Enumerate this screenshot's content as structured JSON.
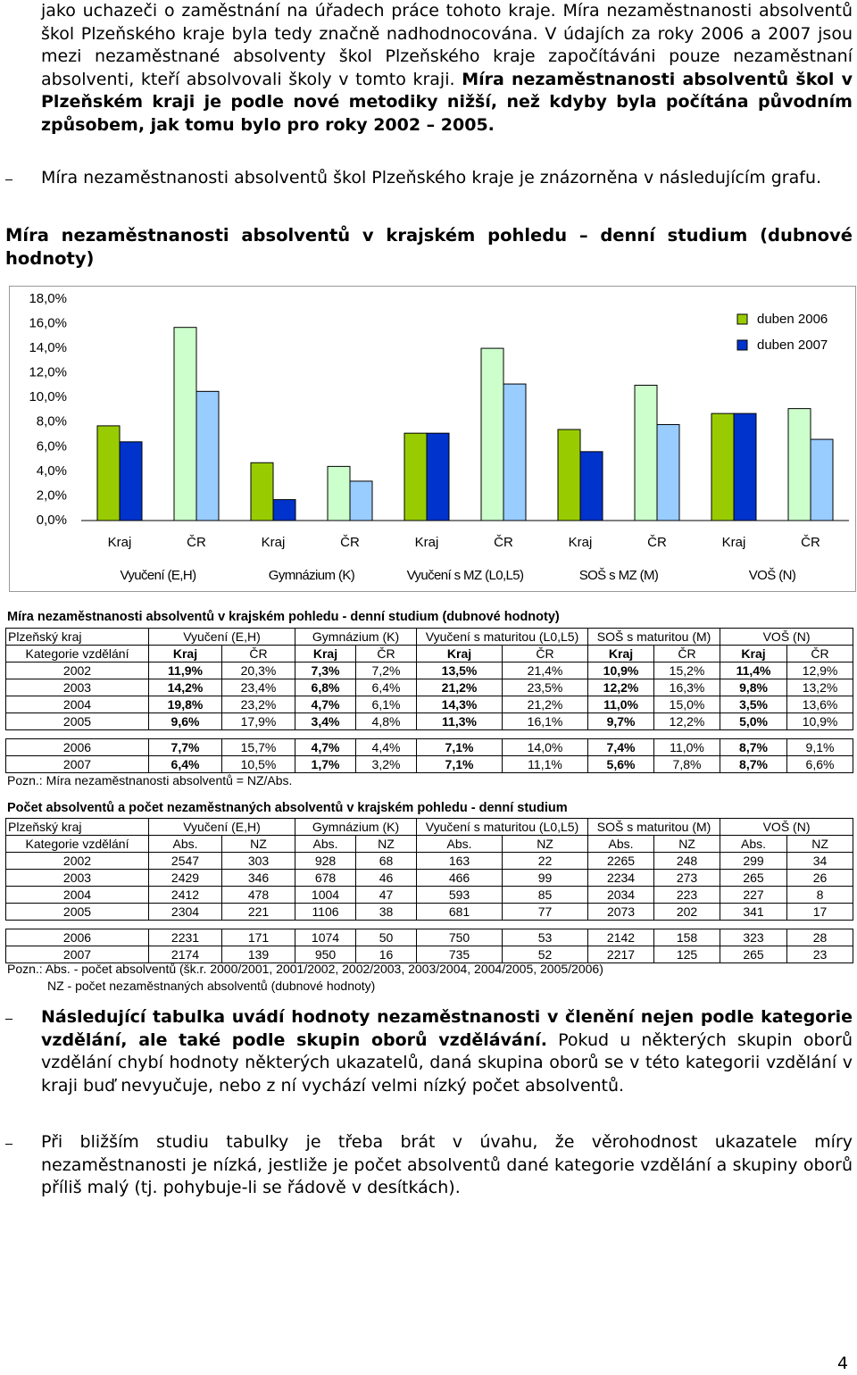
{
  "intro": {
    "text": "jako uchazeči o zaměstnání na úřadech práce tohoto kraje. Míra nezaměstnanosti absolventů škol Plzeňského kraje byla tedy značně nadhodnocována. V údajích za roky 2006 a 2007 jsou mezi nezaměstnané absolventy škol Plzeňského kraje započítáváni pouze nezaměstnaní absolventi, kteří absolvovali školy v tomto kraji.",
    "bold": "Míra nezaměstnanosti absolventů škol v Plzeňském kraji je podle nové metodiky nižší, než kdyby byla počítána původním způsobem, jak tomu bylo pro roky 2002 – 2005."
  },
  "bullets_top": [
    "Míra nezaměstnanosti absolventů škol Plzeňského kraje je znázorněna v následujícím grafu."
  ],
  "chart_heading": "Míra nezaměstnanosti absolventů v krajském pohledu – denní studium (dubnové hodnoty)",
  "chart_data": {
    "type": "bar",
    "categories": [
      "Kraj",
      "ČR",
      "Kraj",
      "ČR",
      "Kraj",
      "ČR",
      "Kraj",
      "ČR",
      "Kraj",
      "ČR"
    ],
    "groups": [
      "Vyučení (E,H)",
      "Gymnázium (K)",
      "Vyučení s MZ (L0,L5)",
      "SOŠ s MZ (M)",
      "VOŠ (N)"
    ],
    "ylim": [
      0,
      18
    ],
    "yticks": [
      {
        "value": 0,
        "label": "0,0%"
      },
      {
        "value": 2,
        "label": "2,0%"
      },
      {
        "value": 4,
        "label": "4,0%"
      },
      {
        "value": 6,
        "label": "6,0%"
      },
      {
        "value": 8,
        "label": "8,0%"
      },
      {
        "value": 10,
        "label": "10,0%"
      },
      {
        "value": 12,
        "label": "12,0%"
      },
      {
        "value": 14,
        "label": "14,0%"
      },
      {
        "value": 16,
        "label": "16,0%"
      },
      {
        "value": 18,
        "label": "18,0%"
      }
    ],
    "legend": "upper right",
    "series": [
      {
        "name": "duben 2006",
        "colors": [
          "#99cc00",
          "#ccffcc",
          "#99cc00",
          "#ccffcc",
          "#99cc00",
          "#ccffcc",
          "#99cc00",
          "#ccffcc",
          "#99cc00",
          "#ccffcc"
        ],
        "values": [
          7.7,
          15.7,
          4.7,
          4.4,
          7.1,
          14.0,
          7.4,
          11.0,
          8.7,
          9.1
        ]
      },
      {
        "name": "duben 2007",
        "colors": [
          "#0033cc",
          "#99ccff",
          "#0033cc",
          "#99ccff",
          "#0033cc",
          "#99ccff",
          "#0033cc",
          "#99ccff",
          "#0033cc",
          "#99ccff"
        ],
        "values": [
          6.4,
          10.5,
          1.7,
          3.2,
          7.1,
          11.1,
          5.6,
          7.8,
          8.7,
          6.6
        ]
      }
    ]
  },
  "table_rates": {
    "title": "Míra nezaměstnanosti absolventů v krajském pohledu - denní studium (dubnové hodnoty)",
    "header_groups": [
      "Plzeňský kraj",
      "Vyučení (E,H)",
      "Gymnázium (K)",
      "Vyučení s maturitou (L0,L5)",
      "SOŠ s maturitou (M)",
      "VOŠ (N)"
    ],
    "header_sub": [
      "Kategorie vzdělání",
      "Kraj",
      "ČR",
      "Kraj",
      "ČR",
      "Kraj",
      "ČR",
      "Kraj",
      "ČR",
      "Kraj",
      "ČR"
    ],
    "rows": [
      [
        "2002",
        "11,9%",
        "20,3%",
        "7,3%",
        "7,2%",
        "13,5%",
        "21,4%",
        "10,9%",
        "15,2%",
        "11,4%",
        "12,9%"
      ],
      [
        "2003",
        "14,2%",
        "23,4%",
        "6,8%",
        "6,4%",
        "21,2%",
        "23,5%",
        "12,2%",
        "16,3%",
        "9,8%",
        "13,2%"
      ],
      [
        "2004",
        "19,8%",
        "23,2%",
        "4,7%",
        "6,1%",
        "14,3%",
        "21,2%",
        "11,0%",
        "15,0%",
        "3,5%",
        "13,6%"
      ],
      [
        "2005",
        "9,6%",
        "17,9%",
        "3,4%",
        "4,8%",
        "11,3%",
        "16,1%",
        "9,7%",
        "12,2%",
        "5,0%",
        "10,9%"
      ]
    ],
    "rows_new": [
      [
        "2006",
        "7,7%",
        "15,7%",
        "4,7%",
        "4,4%",
        "7,1%",
        "14,0%",
        "7,4%",
        "11,0%",
        "8,7%",
        "9,1%"
      ],
      [
        "2007",
        "6,4%",
        "10,5%",
        "1,7%",
        "3,2%",
        "7,1%",
        "11,1%",
        "5,6%",
        "7,8%",
        "8,7%",
        "6,6%"
      ]
    ],
    "notes": [
      "Pozn.: Míra nezaměstnanosti absolventů = NZ/Abs."
    ]
  },
  "table_counts": {
    "title": "Počet absolventů a počet nezaměstnaných absolventů v krajském pohledu - denní studium",
    "header_groups": [
      "Plzeňský kraj",
      "Vyučení (E,H)",
      "Gymnázium (K)",
      "Vyučení s maturitou (L0,L5)",
      "SOŠ s maturitou (M)",
      "VOŠ (N)"
    ],
    "header_sub": [
      "Kategorie vzdělání",
      "Abs.",
      "NZ",
      "Abs.",
      "NZ",
      "Abs.",
      "NZ",
      "Abs.",
      "NZ",
      "Abs.",
      "NZ"
    ],
    "rows": [
      [
        "2002",
        "2547",
        "303",
        "928",
        "68",
        "163",
        "22",
        "2265",
        "248",
        "299",
        "34"
      ],
      [
        "2003",
        "2429",
        "346",
        "678",
        "46",
        "466",
        "99",
        "2234",
        "273",
        "265",
        "26"
      ],
      [
        "2004",
        "2412",
        "478",
        "1004",
        "47",
        "593",
        "85",
        "2034",
        "223",
        "227",
        "8"
      ],
      [
        "2005",
        "2304",
        "221",
        "1106",
        "38",
        "681",
        "77",
        "2073",
        "202",
        "341",
        "17"
      ]
    ],
    "rows_new": [
      [
        "2006",
        "2231",
        "171",
        "1074",
        "50",
        "750",
        "53",
        "2142",
        "158",
        "323",
        "28"
      ],
      [
        "2007",
        "2174",
        "139",
        "950",
        "16",
        "735",
        "52",
        "2217",
        "125",
        "265",
        "23"
      ]
    ],
    "notes": [
      "Pozn.: Abs. - počet absolventů (šk.r. 2000/2001, 2001/2002, 2002/2003, 2003/2004, 2004/2005, 2005/2006)",
      "NZ - počet nezaměstnaných absolventů (dubnové hodnoty)"
    ]
  },
  "bullets_bottom": [
    {
      "bold": "Následující tabulka uvádí hodnoty nezaměstnanosti v členění nejen podle kategorie vzdělání, ale také podle skupin oborů vzdělávání.",
      "text": "Pokud u některých skupin oborů vzdělání chybí hodnoty některých ukazatelů, daná skupina oborů se v této kategorii vzdělání v kraji buď nevyučuje, nebo z ní vychází velmi nízký počet absolventů."
    },
    {
      "text": "Při bližším studiu tabulky je třeba brát v úvahu, že věrohodnost ukazatele míry nezaměstnanosti je nízká, jestliže je počet absolventů dané kategorie vzdělání a skupiny oborů příliš malý (tj. pohybuje-li se řádově v desítkách)."
    }
  ],
  "page_number": "4"
}
